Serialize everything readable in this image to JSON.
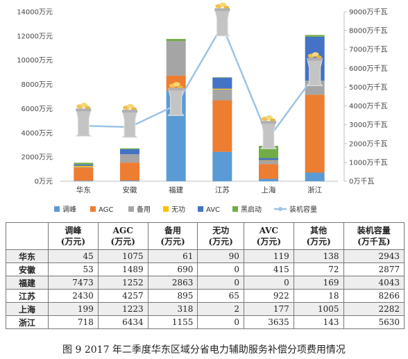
{
  "chart_data": {
    "type": "bar",
    "stacked": true,
    "categories": [
      "华东",
      "安徽",
      "福建",
      "江苏",
      "上海",
      "浙江"
    ],
    "series": [
      {
        "name": "调峰",
        "color": "#5b9bd5",
        "values": [
          45,
          53,
          7473,
          2430,
          199,
          718
        ]
      },
      {
        "name": "AGC",
        "color": "#ed7d31",
        "values": [
          1075,
          1489,
          1252,
          4257,
          1223,
          6434
        ]
      },
      {
        "name": "备用",
        "color": "#a5a5a5",
        "values": [
          61,
          690,
          2863,
          895,
          318,
          1155
        ]
      },
      {
        "name": "无功",
        "color": "#ffc000",
        "values": [
          90,
          0,
          0,
          65,
          2,
          0
        ]
      },
      {
        "name": "AVC",
        "color": "#4472c4",
        "values": [
          119,
          415,
          0,
          922,
          177,
          3635
        ]
      },
      {
        "name": "黑启动",
        "color": "#70ad47",
        "values": [
          138,
          72,
          169,
          18,
          1005,
          143
        ]
      }
    ],
    "line": {
      "name": "装机容量",
      "color": "#9dc3e6",
      "values": [
        2943,
        2877,
        4043,
        8266,
        2282,
        5630
      ]
    },
    "y_left": {
      "min": 0,
      "max": 14000,
      "step": 2000,
      "unit": "万元",
      "ticks": [
        "0万元",
        "2000万元",
        "4000万元",
        "6000万元",
        "8000万元",
        "10000万元",
        "12000万元",
        "14000万元"
      ]
    },
    "y_right": {
      "min": 0,
      "max": 9000,
      "step": 1000,
      "unit": "万千瓦",
      "ticks": [
        "0万千瓦",
        "1000万千瓦",
        "2000万千瓦",
        "3000万千瓦",
        "4000万千瓦",
        "5000万千瓦",
        "6000万千瓦",
        "7000万千瓦",
        "8000万千瓦",
        "9000万千瓦"
      ]
    },
    "legend_position": "bottom",
    "grid": false
  },
  "table": {
    "headers": [
      {
        "top": "",
        "bottom": ""
      },
      {
        "top": "调峰",
        "bottom": "(万元)"
      },
      {
        "top": "AGC",
        "bottom": "(万元)"
      },
      {
        "top": "备用",
        "bottom": "(万元)"
      },
      {
        "top": "无功",
        "bottom": "(万元)"
      },
      {
        "top": "AVC",
        "bottom": "(万元)"
      },
      {
        "top": "其他",
        "bottom": "(万元)"
      },
      {
        "top": "装机容量",
        "bottom": "(万千瓦)"
      }
    ],
    "rows": [
      [
        "华东",
        "45",
        "1075",
        "61",
        "90",
        "119",
        "138",
        "2943"
      ],
      [
        "安徽",
        "53",
        "1489",
        "690",
        "0",
        "415",
        "72",
        "2877"
      ],
      [
        "福建",
        "7473",
        "1252",
        "2863",
        "0",
        "0",
        "169",
        "4043"
      ],
      [
        "江苏",
        "2430",
        "4257",
        "895",
        "65",
        "922",
        "18",
        "8266"
      ],
      [
        "上海",
        "199",
        "1223",
        "318",
        "2",
        "177",
        "1005",
        "2282"
      ],
      [
        "浙江",
        "718",
        "6434",
        "1155",
        "0",
        "3635",
        "143",
        "5630"
      ]
    ]
  },
  "caption": "图 9   2017 年二季度华东区域分省电力辅助服务补偿分项费用情况"
}
